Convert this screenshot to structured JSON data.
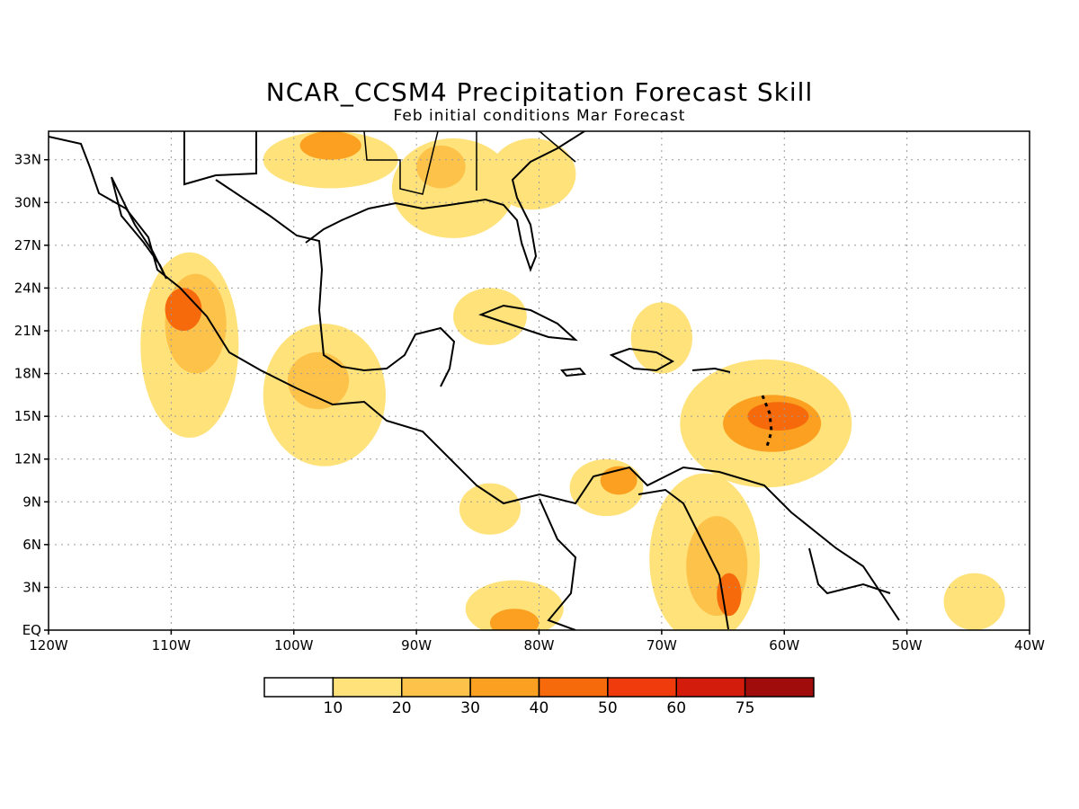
{
  "title": "NCAR_CCSM4 Precipitation Forecast Skill",
  "subtitle": "Feb initial conditions  Mar Forecast",
  "map": {
    "lon_range": [
      -120,
      -40
    ],
    "lat_range": [
      0,
      35
    ],
    "lat_ticks": [
      {
        "value": 33,
        "label": "33N"
      },
      {
        "value": 30,
        "label": "30N"
      },
      {
        "value": 27,
        "label": "27N"
      },
      {
        "value": 24,
        "label": "24N"
      },
      {
        "value": 21,
        "label": "21N"
      },
      {
        "value": 18,
        "label": "18N"
      },
      {
        "value": 15,
        "label": "15N"
      },
      {
        "value": 12,
        "label": "12N"
      },
      {
        "value": 9,
        "label": "9N"
      },
      {
        "value": 6,
        "label": "6N"
      },
      {
        "value": 3,
        "label": "3N"
      },
      {
        "value": 0,
        "label": "EQ"
      }
    ],
    "lon_ticks": [
      {
        "value": -120,
        "label": "120W"
      },
      {
        "value": -110,
        "label": "110W"
      },
      {
        "value": -100,
        "label": "100W"
      },
      {
        "value": -90,
        "label": "90W"
      },
      {
        "value": -80,
        "label": "80W"
      },
      {
        "value": -70,
        "label": "70W"
      },
      {
        "value": -60,
        "label": "60W"
      },
      {
        "value": -50,
        "label": "50W"
      },
      {
        "value": -40,
        "label": "40W"
      }
    ],
    "grid": true
  },
  "colorbar": {
    "colors": [
      "#ffffff",
      "#ffe27a",
      "#fdc24a",
      "#fba020",
      "#f76a0c",
      "#f03c0c",
      "#d41c0c",
      "#a00c0c"
    ],
    "labels": [
      "10",
      "20",
      "30",
      "40",
      "50",
      "60",
      "75"
    ]
  },
  "skill_regions": [
    {
      "level": 1,
      "lon": -108.5,
      "lat": 20.0,
      "rlon": 4.0,
      "rlat": 6.5
    },
    {
      "level": 2,
      "lon": -108.0,
      "lat": 21.5,
      "rlon": 2.5,
      "rlat": 3.5
    },
    {
      "level": 4,
      "lon": -109.0,
      "lat": 22.5,
      "rlon": 1.5,
      "rlat": 1.5
    },
    {
      "level": 1,
      "lon": -97.5,
      "lat": 16.5,
      "rlon": 5.0,
      "rlat": 5.0
    },
    {
      "level": 2,
      "lon": -98.0,
      "lat": 17.5,
      "rlon": 2.5,
      "rlat": 2.0
    },
    {
      "level": 1,
      "lon": -97.0,
      "lat": 33.0,
      "rlon": 5.5,
      "rlat": 2.0
    },
    {
      "level": 3,
      "lon": -97.0,
      "lat": 34.0,
      "rlon": 2.5,
      "rlat": 1.0
    },
    {
      "level": 1,
      "lon": -87.0,
      "lat": 31.0,
      "rlon": 5.0,
      "rlat": 3.5
    },
    {
      "level": 2,
      "lon": -88.0,
      "lat": 32.5,
      "rlon": 2.0,
      "rlat": 1.5
    },
    {
      "level": 1,
      "lon": -80.5,
      "lat": 32.0,
      "rlon": 3.5,
      "rlat": 2.5
    },
    {
      "level": 1,
      "lon": -70.0,
      "lat": 20.5,
      "rlon": 2.5,
      "rlat": 2.5
    },
    {
      "level": 1,
      "lon": -84.0,
      "lat": 22.0,
      "rlon": 3.0,
      "rlat": 2.0
    },
    {
      "level": 1,
      "lon": -61.5,
      "lat": 14.5,
      "rlon": 7.0,
      "rlat": 4.5
    },
    {
      "level": 3,
      "lon": -61.0,
      "lat": 14.5,
      "rlon": 4.0,
      "rlat": 2.0
    },
    {
      "level": 4,
      "lon": -60.5,
      "lat": 15.0,
      "rlon": 2.5,
      "rlat": 1.0
    },
    {
      "level": 1,
      "lon": -66.5,
      "lat": 5.0,
      "rlon": 4.5,
      "rlat": 6.0
    },
    {
      "level": 2,
      "lon": -65.5,
      "lat": 4.5,
      "rlon": 2.5,
      "rlat": 3.5
    },
    {
      "level": 4,
      "lon": -64.5,
      "lat": 2.5,
      "rlon": 1.0,
      "rlat": 1.5
    },
    {
      "level": 1,
      "lon": -74.5,
      "lat": 10.0,
      "rlon": 3.0,
      "rlat": 2.0
    },
    {
      "level": 3,
      "lon": -73.5,
      "lat": 10.5,
      "rlon": 1.5,
      "rlat": 1.0
    },
    {
      "level": 1,
      "lon": -84.0,
      "lat": 8.5,
      "rlon": 2.5,
      "rlat": 1.8
    },
    {
      "level": 1,
      "lon": -82.0,
      "lat": 1.5,
      "rlon": 4.0,
      "rlat": 2.0
    },
    {
      "level": 3,
      "lon": -82.0,
      "lat": 0.5,
      "rlon": 2.0,
      "rlat": 1.0
    },
    {
      "level": 1,
      "lon": -44.5,
      "lat": 2.0,
      "rlon": 2.5,
      "rlat": 2.0
    }
  ]
}
